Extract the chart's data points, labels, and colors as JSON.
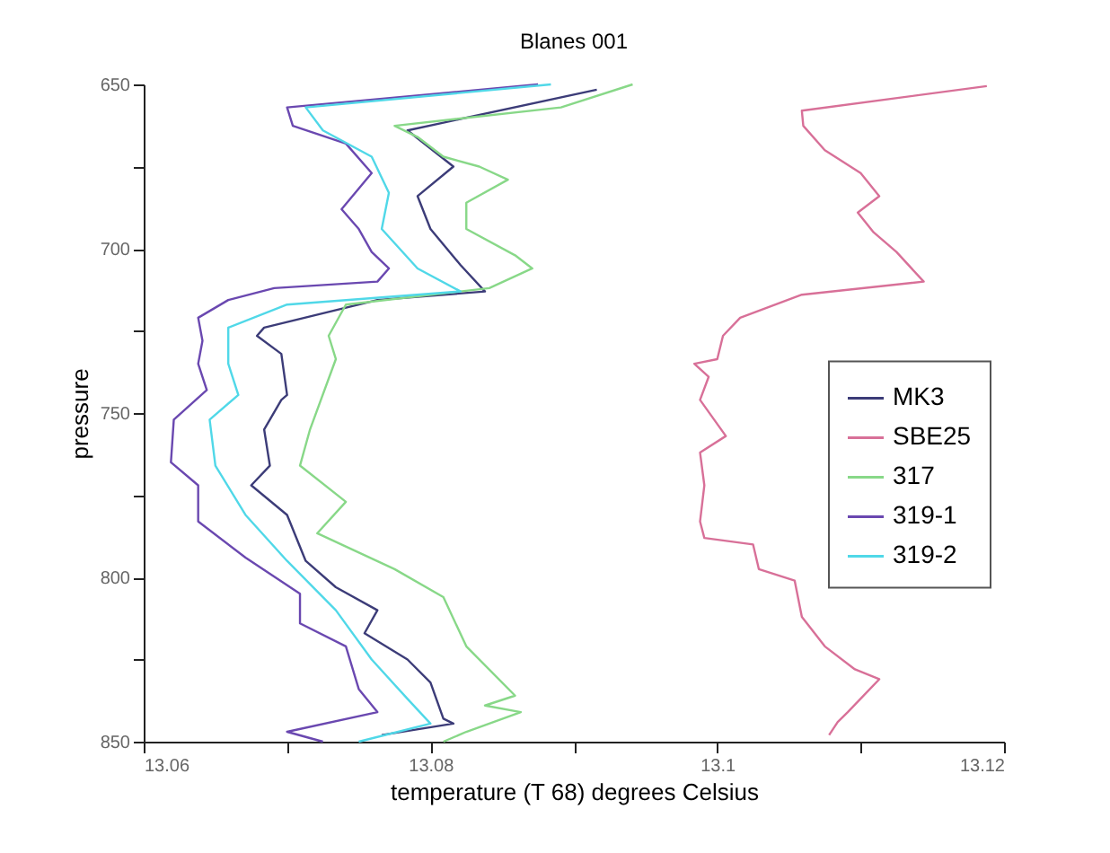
{
  "chart_data": {
    "type": "line",
    "title": "Blanes 001",
    "xlabel": "temperature (T 68) degrees Celsius",
    "ylabel": "pressure",
    "xlim": [
      13.06,
      13.12
    ],
    "xticks": [
      13.06,
      {
        "value": 13.07,
        "label": null
      },
      13.08,
      {
        "value": 13.09,
        "label": null
      },
      13.1,
      {
        "value": 13.11,
        "label": null
      },
      13.12
    ],
    "ylim": [
      850,
      650
    ],
    "yticks": [
      650,
      {
        "value": 675,
        "label": null
      },
      700,
      {
        "value": 725,
        "label": null
      },
      750,
      {
        "value": 775,
        "label": null
      },
      800,
      {
        "value": 825,
        "label": null
      },
      850
    ],
    "legend": "right",
    "line_style": "solid",
    "grid": false,
    "series": [
      {
        "name": "MK3",
        "color": "#3c3c78",
        "x": [
          13.0916,
          13.0784,
          13.0816,
          13.0791,
          13.08,
          13.0821,
          13.0838,
          13.0763,
          13.0684,
          13.0679,
          13.0696,
          13.07,
          13.0696,
          13.0684,
          13.0688,
          13.0675,
          13.07,
          13.0713,
          13.0734,
          13.0763,
          13.0754,
          13.0784,
          13.08,
          13.0809,
          13.0816,
          13.0766
        ],
        "values": [
          651.6,
          664,
          675,
          684,
          694,
          705,
          713,
          715.6,
          724,
          726.5,
          732,
          744.5,
          746,
          755,
          766,
          772,
          781,
          795,
          803,
          810,
          817,
          825,
          832,
          843,
          844.5,
          848
        ]
      },
      {
        "name": "SBE25",
        "color": "#d87098",
        "x": [
          13.1188,
          13.1059,
          13.106,
          13.1075,
          13.11,
          13.1113,
          13.1098,
          13.1109,
          13.1125,
          13.1144,
          13.1059,
          13.1016,
          13.1004,
          13.1,
          13.0984,
          13.0994,
          13.0988,
          13.1006,
          13.0988,
          13.0991,
          13.0988,
          13.0991,
          13.1025,
          13.1029,
          13.1054,
          13.1059,
          13.1075,
          13.1096,
          13.1113,
          13.1091,
          13.1084,
          13.1078
        ],
        "values": [
          650.5,
          658,
          662.6,
          670,
          677,
          684,
          689,
          695,
          701,
          710,
          714,
          721,
          726.5,
          733.6,
          735,
          739,
          746,
          757,
          762,
          772,
          783,
          788,
          790,
          797.5,
          801,
          812,
          821,
          828,
          831,
          841,
          844,
          848
        ]
      },
      {
        "name": "317",
        "color": "#88d888",
        "x": [
          13.0941,
          13.0891,
          13.0775,
          13.0791,
          13.0809,
          13.0834,
          13.0854,
          13.0825,
          13.0825,
          13.0859,
          13.0871,
          13.0841,
          13.0741,
          13.0729,
          13.0734,
          13.0716,
          13.0709,
          13.0741,
          13.0721,
          13.0775,
          13.0809,
          13.0825,
          13.0859,
          13.0838,
          13.0863,
          13.0825,
          13.0809
        ],
        "values": [
          650,
          657,
          662.6,
          666,
          672,
          675,
          679,
          686,
          694,
          702,
          706,
          712,
          717,
          726.5,
          733.6,
          755,
          766,
          777,
          786.6,
          797.5,
          806,
          821,
          836,
          839,
          841,
          847,
          850
        ]
      },
      {
        "name": "319-1",
        "color": "#6a48b0",
        "x": [
          13.0875,
          13.07,
          13.0704,
          13.0741,
          13.0759,
          13.0738,
          13.075,
          13.0759,
          13.0771,
          13.0763,
          13.0691,
          13.0659,
          13.0638,
          13.0641,
          13.0638,
          13.0644,
          13.0621,
          13.0619,
          13.0638,
          13.0638,
          13.0671,
          13.0709,
          13.0709,
          13.0741,
          13.075,
          13.0763,
          13.07,
          13.0725
        ],
        "values": [
          650,
          657,
          662.6,
          668,
          677,
          688,
          694,
          701,
          706,
          710,
          712,
          715.6,
          721,
          728,
          735,
          743,
          752,
          765,
          772,
          783,
          794,
          805,
          814,
          821,
          834,
          841,
          847,
          850
        ]
      },
      {
        "name": "319-2",
        "color": "#50d8e8",
        "x": [
          13.0884,
          13.0713,
          13.0725,
          13.0759,
          13.0771,
          13.0766,
          13.0791,
          13.0821,
          13.07,
          13.0659,
          13.0659,
          13.0666,
          13.0646,
          13.065,
          13.0671,
          13.07,
          13.0734,
          13.0759,
          13.0784,
          13.08,
          13.075
        ],
        "values": [
          650,
          657,
          664,
          672,
          683,
          694,
          706,
          713,
          717,
          724,
          735,
          744.5,
          752,
          766,
          781,
          795,
          810,
          825,
          837,
          844.5,
          850
        ]
      }
    ]
  }
}
